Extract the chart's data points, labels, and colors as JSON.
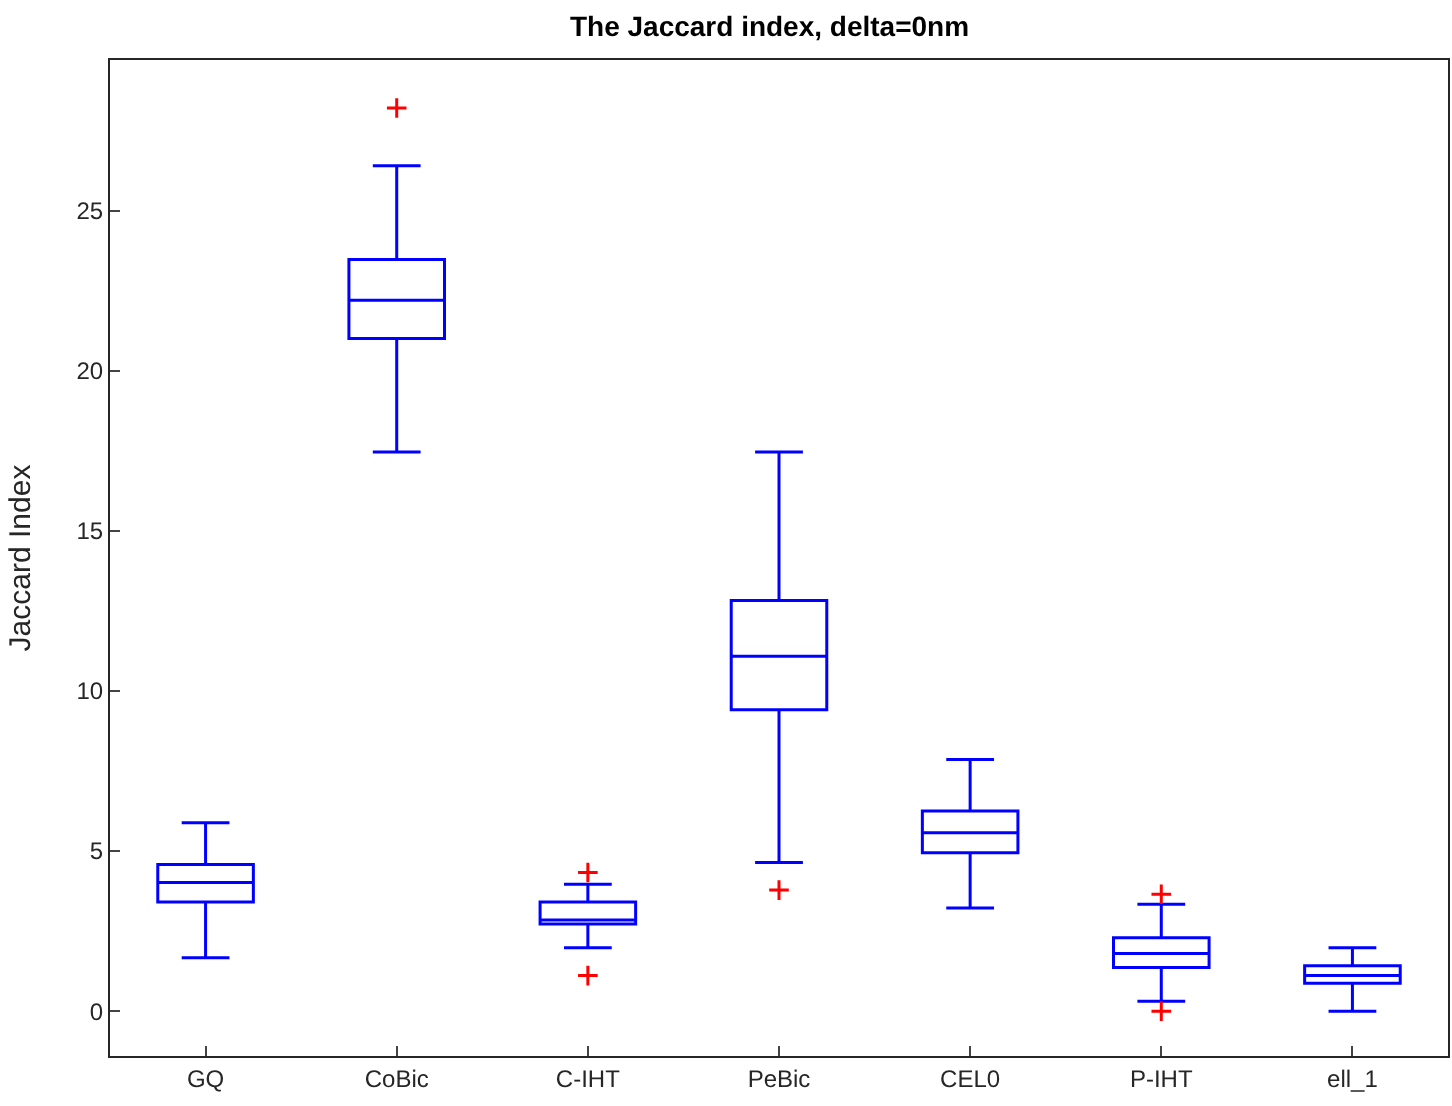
{
  "chart_data": {
    "type": "box",
    "title": "The Jaccard index, delta=0nm",
    "ylabel": "Jaccard Index",
    "categories": [
      "GQ",
      "CoBic",
      "C-IHT",
      "PeBic",
      "CEL0",
      "P-IHT",
      "ell_1"
    ],
    "ylim": [
      -1.4,
      29.7
    ],
    "yticks": [
      0,
      5,
      10,
      15,
      20,
      25
    ],
    "series": [
      {
        "color": "#0000ff",
        "boxes": [
          {
            "low": 1.67,
            "q1": 3.41,
            "median": 4.02,
            "q3": 4.58,
            "high": 5.88
          },
          {
            "low": 17.46,
            "q1": 21.0,
            "median": 22.2,
            "q3": 23.47,
            "high": 26.4,
            "outliers": [
              28.2
            ]
          },
          {
            "low": 1.98,
            "q1": 2.72,
            "median": 2.85,
            "q3": 3.41,
            "high": 3.96,
            "outliers": [
              4.33,
              1.11
            ]
          },
          {
            "low": 4.64,
            "q1": 9.41,
            "median": 11.08,
            "q3": 12.82,
            "high": 17.46,
            "outliers": [
              3.78
            ]
          },
          {
            "low": 3.22,
            "q1": 4.95,
            "median": 5.57,
            "q3": 6.25,
            "high": 7.86
          },
          {
            "low": 0.31,
            "q1": 1.36,
            "median": 1.8,
            "q3": 2.29,
            "high": 3.34,
            "outliers": [
              3.65,
              0
            ]
          },
          {
            "low": 0,
            "q1": 0.87,
            "median": 1.11,
            "q3": 1.42,
            "high": 1.98
          }
        ]
      }
    ]
  }
}
